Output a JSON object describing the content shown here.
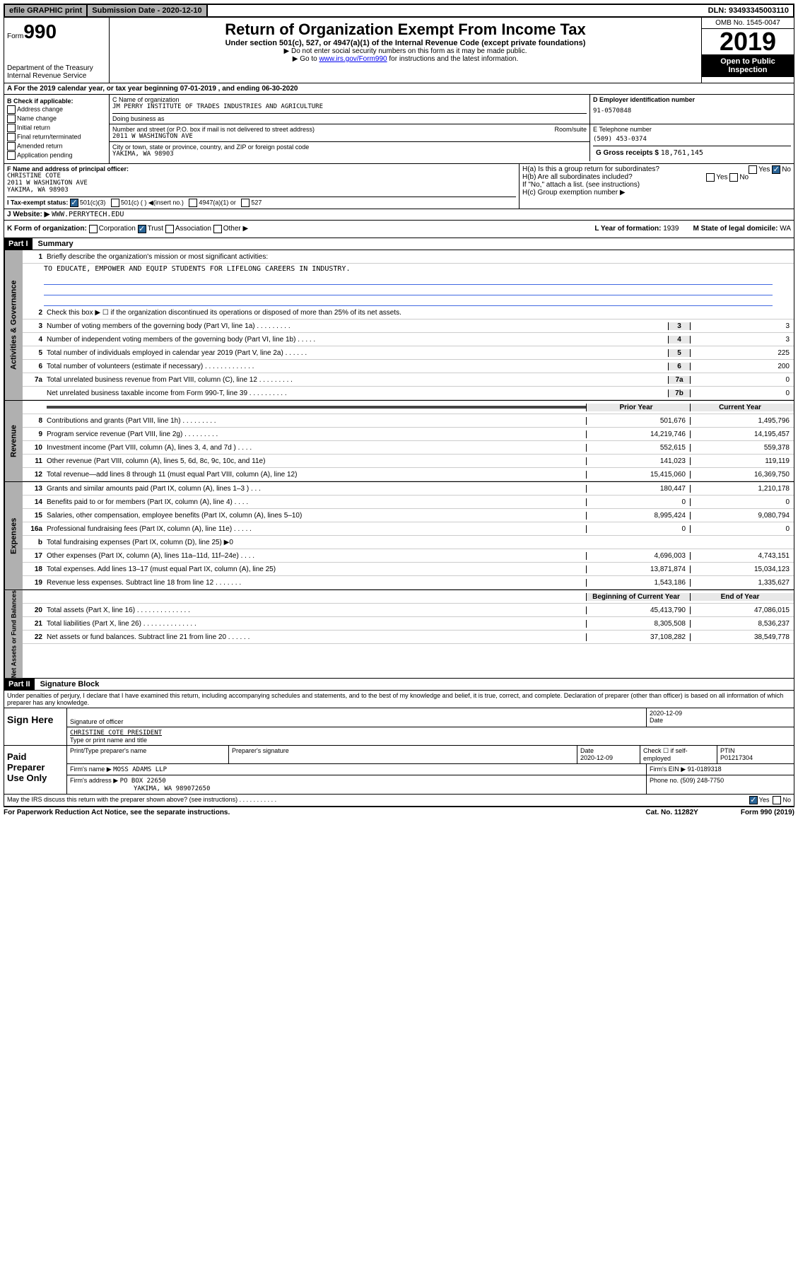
{
  "topbar": {
    "efile": "efile GRAPHIC print",
    "subdate_label": "Submission Date - 2020-12-10",
    "dln": "DLN: 93493345003110"
  },
  "header": {
    "form_prefix": "Form",
    "form_num": "990",
    "dept": "Department of the Treasury\nInternal Revenue Service",
    "title": "Return of Organization Exempt From Income Tax",
    "subtitle": "Under section 501(c), 527, or 4947(a)(1) of the Internal Revenue Code (except private foundations)",
    "note1": "▶ Do not enter social security numbers on this form as it may be made public.",
    "note2_prefix": "▶ Go to ",
    "note2_link": "www.irs.gov/Form990",
    "note2_suffix": " for instructions and the latest information.",
    "omb": "OMB No. 1545-0047",
    "year": "2019",
    "open": "Open to Public Inspection"
  },
  "row_a": "A For the 2019 calendar year, or tax year beginning 07-01-2019    , and ending 06-30-2020",
  "section_b": {
    "label": "B Check if applicable:",
    "opts": [
      "Address change",
      "Name change",
      "Initial return",
      "Final return/terminated",
      "Amended return",
      "Application pending"
    ]
  },
  "section_c": {
    "name_label": "C Name of organization",
    "name": "JM PERRY INSTITUTE OF TRADES INDUSTRIES AND AGRICULTURE",
    "dba_label": "Doing business as",
    "addr_label": "Number and street (or P.O. box if mail is not delivered to street address)",
    "room_label": "Room/suite",
    "addr": "2011 W WASHINGTON AVE",
    "city_label": "City or town, state or province, country, and ZIP or foreign postal code",
    "city": "YAKIMA, WA  98903"
  },
  "section_d": {
    "label": "D Employer identification number",
    "value": "91-0570848"
  },
  "section_e": {
    "label": "E Telephone number",
    "value": "(509) 453-0374"
  },
  "section_g": {
    "label": "G Gross receipts $ ",
    "value": "18,761,145"
  },
  "section_f": {
    "label": "F Name and address of principal officer:",
    "name": "CHRISTINE COTE",
    "addr": "2011 W WASHINGTON AVE\nYAKIMA, WA  98903"
  },
  "section_h": {
    "ha": "H(a)  Is this a group return for subordinates?",
    "hb": "H(b)  Are all subordinates included?",
    "hb_note": "If \"No,\" attach a list. (see instructions)",
    "hc": "H(c)  Group exemption number ▶"
  },
  "section_i": {
    "label": "I   Tax-exempt status:",
    "opts": [
      "501(c)(3)",
      "501(c) (  ) ◀(insert no.)",
      "4947(a)(1) or",
      "527"
    ]
  },
  "section_j": {
    "label": "J   Website: ▶ ",
    "value": "WWW.PERRYTECH.EDU"
  },
  "section_k": {
    "label": "K Form of organization:",
    "opts": [
      "Corporation",
      "Trust",
      "Association",
      "Other ▶"
    ],
    "l_label": "L Year of formation: ",
    "l_val": "1939",
    "m_label": "M State of legal domicile: ",
    "m_val": "WA"
  },
  "part1": {
    "header": "Part I",
    "title": "Summary",
    "line1": "Briefly describe the organization's mission or most significant activities:",
    "mission": "TO EDUCATE, EMPOWER AND EQUIP STUDENTS FOR LIFELONG CAREERS IN INDUSTRY.",
    "line2": "Check this box ▶ ☐  if the organization discontinued its operations or disposed of more than 25% of its net assets.",
    "sides": {
      "gov": "Activities & Governance",
      "rev": "Revenue",
      "exp": "Expenses",
      "net": "Net Assets or Fund Balances"
    }
  },
  "gov_lines": [
    {
      "n": "3",
      "t": "Number of voting members of the governing body (Part VI, line 1a)  .    .    .    .    .    .    .    .    .",
      "b": "3",
      "v": "3"
    },
    {
      "n": "4",
      "t": "Number of independent voting members of the governing body (Part VI, line 1b)   .    .    .    .    .",
      "b": "4",
      "v": "3"
    },
    {
      "n": "5",
      "t": "Total number of individuals employed in calendar year 2019 (Part V, line 2a)   .    .    .    .    .    .",
      "b": "5",
      "v": "225"
    },
    {
      "n": "6",
      "t": "Total number of volunteers (estimate if necessary)   .    .    .    .    .    .    .    .    .    .    .    .    .",
      "b": "6",
      "v": "200"
    },
    {
      "n": "7a",
      "t": "Total unrelated business revenue from Part VIII, column (C), line 12   .    .    .    .    .    .    .    .    .",
      "b": "7a",
      "v": "0"
    },
    {
      "n": "",
      "t": "Net unrelated business taxable income from Form 990-T, line 39   .    .    .    .    .    .    .    .    .    .",
      "b": "7b",
      "v": "0"
    }
  ],
  "col_headers": {
    "prior": "Prior Year",
    "current": "Current Year"
  },
  "rev_lines": [
    {
      "n": "8",
      "t": "Contributions and grants (Part VIII, line 1h)   .    .    .    .    .    .    .    .    .",
      "p": "501,676",
      "c": "1,495,796"
    },
    {
      "n": "9",
      "t": "Program service revenue (Part VIII, line 2g)   .    .    .    .    .    .    .    .    .",
      "p": "14,219,746",
      "c": "14,195,457"
    },
    {
      "n": "10",
      "t": "Investment income (Part VIII, column (A), lines 3, 4, and 7d )   .    .    .    .",
      "p": "552,615",
      "c": "559,378"
    },
    {
      "n": "11",
      "t": "Other revenue (Part VIII, column (A), lines 5, 6d, 8c, 9c, 10c, and 11e)",
      "p": "141,023",
      "c": "119,119"
    },
    {
      "n": "12",
      "t": "Total revenue—add lines 8 through 11 (must equal Part VIII, column (A), line 12)",
      "p": "15,415,060",
      "c": "16,369,750"
    }
  ],
  "exp_lines": [
    {
      "n": "13",
      "t": "Grants and similar amounts paid (Part IX, column (A), lines 1–3 )   .    .    .",
      "p": "180,447",
      "c": "1,210,178"
    },
    {
      "n": "14",
      "t": "Benefits paid to or for members (Part IX, column (A), line 4)   .    .    .    .",
      "p": "0",
      "c": "0"
    },
    {
      "n": "15",
      "t": "Salaries, other compensation, employee benefits (Part IX, column (A), lines 5–10)",
      "p": "8,995,424",
      "c": "9,080,794"
    },
    {
      "n": "16a",
      "t": "Professional fundraising fees (Part IX, column (A), line 11e)   .    .    .    .    .",
      "p": "0",
      "c": "0"
    },
    {
      "n": "b",
      "t": "Total fundraising expenses (Part IX, column (D), line 25) ▶0",
      "p": "",
      "c": ""
    },
    {
      "n": "17",
      "t": "Other expenses (Part IX, column (A), lines 11a–11d, 11f–24e)   .    .    .    .",
      "p": "4,696,003",
      "c": "4,743,151"
    },
    {
      "n": "18",
      "t": "Total expenses. Add lines 13–17 (must equal Part IX, column (A), line 25)",
      "p": "13,871,874",
      "c": "15,034,123"
    },
    {
      "n": "19",
      "t": "Revenue less expenses. Subtract line 18 from line 12   .    .    .    .    .    .    .",
      "p": "1,543,186",
      "c": "1,335,627"
    }
  ],
  "net_headers": {
    "beg": "Beginning of Current Year",
    "end": "End of Year"
  },
  "net_lines": [
    {
      "n": "20",
      "t": "Total assets (Part X, line 16)   .    .    .    .    .    .    .    .    .    .    .    .    .    .",
      "p": "45,413,790",
      "c": "47,086,015"
    },
    {
      "n": "21",
      "t": "Total liabilities (Part X, line 26)   .    .    .    .    .    .    .    .    .    .    .    .    .    .",
      "p": "8,305,508",
      "c": "8,536,237"
    },
    {
      "n": "22",
      "t": "Net assets or fund balances. Subtract line 21 from line 20   .    .    .    .    .    .",
      "p": "37,108,282",
      "c": "38,549,778"
    }
  ],
  "part2": {
    "header": "Part II",
    "title": "Signature Block",
    "text": "Under penalties of perjury, I declare that I have examined this return, including accompanying schedules and statements, and to the best of my knowledge and belief, it is true, correct, and complete. Declaration of preparer (other than officer) is based on all information of which preparer has any knowledge."
  },
  "sign": {
    "label": "Sign Here",
    "sig_label": "Signature of officer",
    "date": "2020-12-09",
    "date_label": "Date",
    "name": "CHRISTINE COTE PRESIDENT",
    "name_label": "Type or print name and title"
  },
  "paid": {
    "label": "Paid Preparer Use Only",
    "col1": "Print/Type preparer's name",
    "col2": "Preparer's signature",
    "col3": "Date",
    "col3v": "2020-12-09",
    "col4": "Check ☐ if self-employed",
    "col5": "PTIN",
    "col5v": "P01217304",
    "firm_label": "Firm's name    ▶ ",
    "firm": "MOSS ADAMS LLP",
    "ein_label": "Firm's EIN ▶ ",
    "ein": "91-0189318",
    "addr_label": "Firm's address ▶ ",
    "addr": "PO BOX 22650",
    "addr2": "YAKIMA, WA  989072650",
    "phone_label": "Phone no. ",
    "phone": "(509) 248-7750"
  },
  "discuss": "May the IRS discuss this return with the preparer shown above? (see instructions)    .    .    .    .    .    .    .    .    .    .    .",
  "footer": {
    "left": "For Paperwork Reduction Act Notice, see the separate instructions.",
    "mid": "Cat. No. 11282Y",
    "right": "Form 990 (2019)"
  }
}
